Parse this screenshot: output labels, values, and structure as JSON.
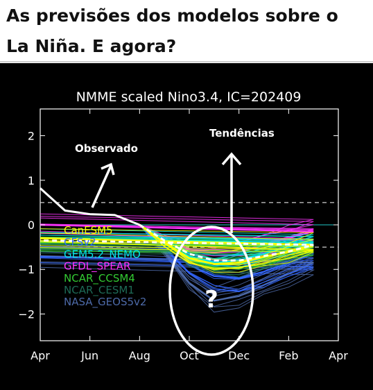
{
  "headline": {
    "line1": "As previsões dos modelos sobre o",
    "line2": "La Niña. E agora?"
  },
  "colors": {
    "background": "#000000",
    "headline_text": "#111111",
    "observed": "#ffffff",
    "ensemble_mean": "#ffffff"
  },
  "annotations": {
    "observed": "Observado",
    "trends": "Tendências",
    "question": "?"
  },
  "chart_data": {
    "type": "line",
    "title": "NMME scaled Nino3.4, IC=202409",
    "xlabel": "",
    "ylabel": "",
    "x_ticks": [
      "Apr",
      "Jun",
      "Aug",
      "Oct",
      "Dec",
      "Feb",
      "Apr"
    ],
    "x_months": [
      "Apr",
      "May",
      "Jun",
      "Jul",
      "Aug",
      "Sep",
      "Oct",
      "Nov",
      "Dec",
      "Jan",
      "Feb",
      "Mar",
      "Apr"
    ],
    "y_ticks": [
      "2",
      "1",
      "0",
      "−1",
      "−2"
    ],
    "ylim": [
      -2.6,
      2.6
    ],
    "reference_lines": [
      0.5,
      -0.5
    ],
    "zero_line": 0,
    "observed": {
      "color": "#ffffff",
      "x_months": [
        "Apr",
        "May",
        "Jun",
        "Jul",
        "Aug"
      ],
      "values": [
        0.82,
        0.32,
        0.24,
        0.22,
        0.0
      ]
    },
    "ensemble_mean": {
      "color": "#ffffff",
      "style": "dashed",
      "x_months": [
        "Aug",
        "Sep",
        "Oct",
        "Nov",
        "Dec",
        "Jan",
        "Feb",
        "Mar",
        "Apr"
      ],
      "values": [
        0.0,
        -0.35,
        -0.65,
        -0.8,
        -0.8,
        -0.7,
        -0.6,
        -0.45,
        -0.35
      ]
    },
    "series": [
      {
        "name": "CanESM5",
        "color": "#ffff00",
        "x_months": [
          "Aug",
          "Sep",
          "Oct",
          "Nov",
          "Dec",
          "Jan",
          "Feb",
          "Mar",
          "Apr"
        ],
        "values": [
          0.0,
          -0.4,
          -0.75,
          -0.88,
          -0.85,
          -0.72,
          -0.6,
          -0.45,
          -0.3
        ],
        "spread": 0.25
      },
      {
        "name": "CFSv2",
        "color": "#3366ff",
        "x_months": [
          "Aug",
          "Sep",
          "Oct",
          "Nov",
          "Dec",
          "Jan",
          "Feb",
          "Mar",
          "Apr"
        ],
        "values": [
          0.0,
          -0.45,
          -0.9,
          -1.15,
          -1.2,
          -1.05,
          -0.85,
          -0.65,
          -0.5
        ],
        "spread": 0.35
      },
      {
        "name": "GEM5.2_NEMO",
        "color": "#00e5e5",
        "x_months": [
          "Aug",
          "Sep",
          "Oct",
          "Nov",
          "Dec",
          "Jan",
          "Feb",
          "Mar",
          "Apr"
        ],
        "values": [
          0.0,
          -0.4,
          -0.72,
          -0.85,
          -0.8,
          -0.65,
          -0.5,
          -0.4,
          -0.3
        ],
        "spread": 0.2
      },
      {
        "name": "GFDL_SPEAR",
        "color": "#ff33ff",
        "x_months": [
          "Aug",
          "Sep",
          "Oct",
          "Nov",
          "Dec",
          "Jan",
          "Feb",
          "Mar",
          "Apr"
        ],
        "values": [
          0.0,
          -0.3,
          -0.55,
          -0.62,
          -0.6,
          -0.45,
          -0.3,
          -0.15,
          0.0
        ],
        "spread": 0.3
      },
      {
        "name": "NCAR_CCSM4",
        "color": "#33cc33",
        "x_months": [
          "Aug",
          "Sep",
          "Oct",
          "Nov",
          "Dec",
          "Jan",
          "Feb",
          "Mar",
          "Apr"
        ],
        "values": [
          0.0,
          -0.35,
          -0.7,
          -0.85,
          -0.85,
          -0.75,
          -0.6,
          -0.5,
          -0.4
        ],
        "spread": 0.15
      },
      {
        "name": "NCAR_CESM1",
        "color": "#1e6b57",
        "x_months": [
          "Aug",
          "Sep",
          "Oct",
          "Nov",
          "Dec",
          "Jan",
          "Feb",
          "Mar",
          "Apr"
        ],
        "values": [
          0.0,
          -0.4,
          -0.8,
          -0.95,
          -0.95,
          -0.8,
          -0.65,
          -0.5,
          -0.4
        ],
        "spread": 0.2
      },
      {
        "name": "NASA_GEOS5v2",
        "color": "#4d6aa8",
        "x_months": [
          "Aug",
          "Sep",
          "Oct",
          "Nov",
          "Dec",
          "Jan",
          "Feb",
          "Mar",
          "Apr"
        ],
        "values": [
          0.0,
          -0.6,
          -1.3,
          -1.7,
          -1.6,
          -1.35,
          -1.1,
          -0.85,
          -0.7
        ],
        "spread": 0.4
      }
    ],
    "legend_position": "left-middle",
    "grid": false
  }
}
